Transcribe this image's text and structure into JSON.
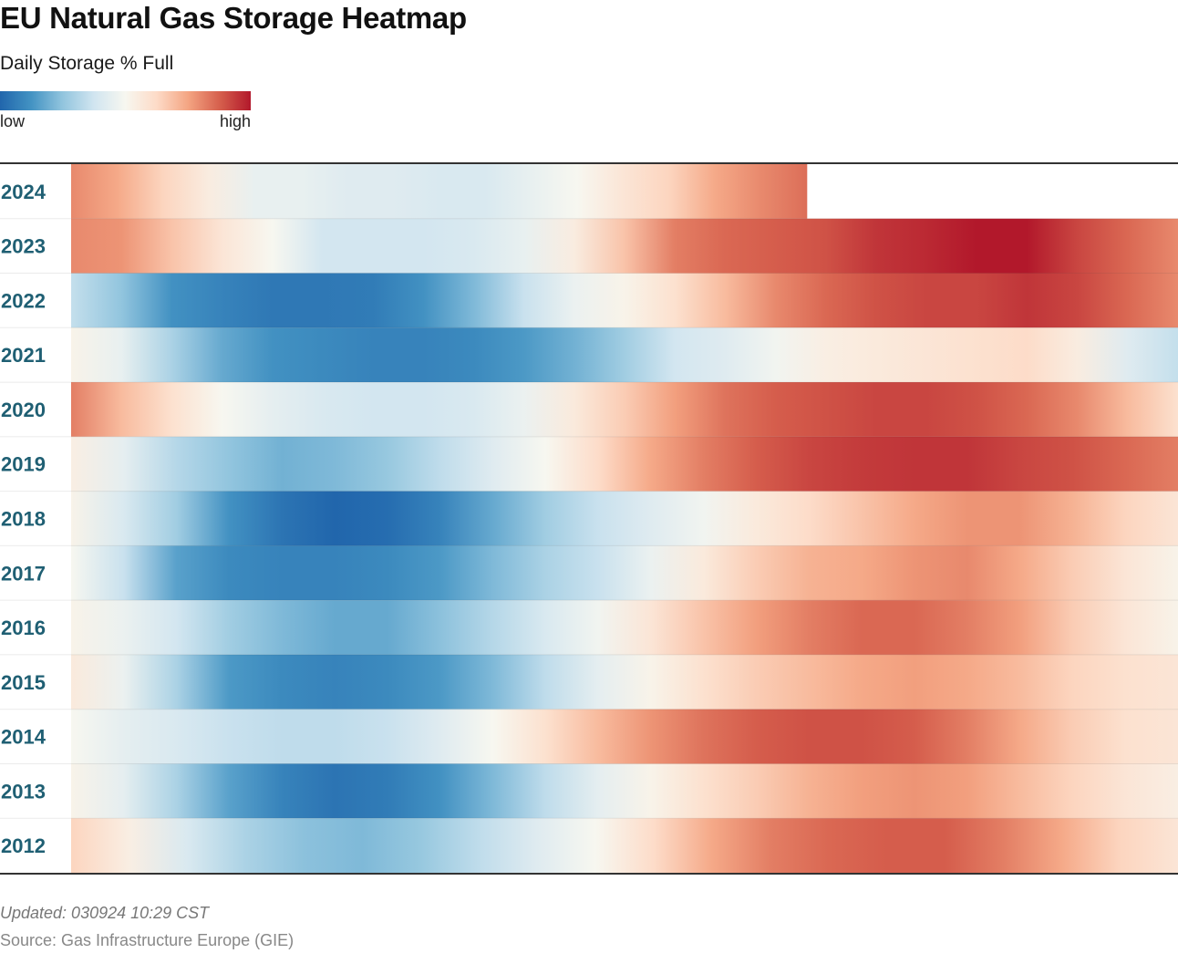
{
  "header": {
    "title": "EU Natural Gas Storage Heatmap",
    "subtitle": "Daily Storage % Full"
  },
  "legend": {
    "low_label": "low",
    "high_label": "high",
    "colors": [
      "#2166ac",
      "#4393c3",
      "#92c5de",
      "#d1e5f0",
      "#f7f7f0",
      "#fddbc7",
      "#f4a582",
      "#d6604d",
      "#b2182b"
    ]
  },
  "footer": {
    "updated": "Updated: 030924 10:29 CST",
    "source": "Source: Gas Infrastructure Europe (GIE)"
  },
  "chart_data": {
    "type": "heatmap",
    "title": "EU Natural Gas Storage Heatmap",
    "subtitle": "Daily Storage % Full",
    "value_scale": "relative intensity 0 (low) to 1 (high)",
    "colorscale": "blue-white-red diverging",
    "x_span_months": 12,
    "rows": [
      {
        "year": "2024",
        "values": [
          0.8,
          0.74,
          0.64,
          0.55,
          0.45,
          0.45,
          0.42,
          0.42,
          0.4,
          0.4,
          0.45,
          0.5,
          0.58,
          0.64,
          0.74,
          0.8,
          0.85
        ],
        "coverage": 0.665
      },
      {
        "year": "2023",
        "values": [
          0.8,
          0.78,
          0.68,
          0.58,
          0.5,
          0.38,
          0.38,
          0.38,
          0.4,
          0.45,
          0.55,
          0.68,
          0.82,
          0.86,
          0.88,
          0.9,
          0.95,
          0.97,
          1.0,
          1.0,
          0.92,
          0.86,
          0.8
        ],
        "coverage": 1.0
      },
      {
        "year": "2022",
        "values": [
          0.35,
          0.25,
          0.12,
          0.08,
          0.05,
          0.05,
          0.06,
          0.12,
          0.22,
          0.36,
          0.46,
          0.52,
          0.6,
          0.7,
          0.8,
          0.86,
          0.9,
          0.92,
          0.92,
          0.95,
          0.92,
          0.86,
          0.8
        ],
        "coverage": 1.0
      },
      {
        "year": "2021",
        "values": [
          0.52,
          0.45,
          0.3,
          0.18,
          0.12,
          0.1,
          0.08,
          0.08,
          0.1,
          0.14,
          0.2,
          0.28,
          0.38,
          0.42,
          0.48,
          0.54,
          0.56,
          0.58,
          0.6,
          0.62,
          0.55,
          0.42,
          0.35
        ],
        "coverage": 1.0
      },
      {
        "year": "2020",
        "values": [
          0.82,
          0.7,
          0.6,
          0.5,
          0.44,
          0.4,
          0.38,
          0.38,
          0.4,
          0.46,
          0.56,
          0.66,
          0.76,
          0.84,
          0.88,
          0.9,
          0.92,
          0.92,
          0.9,
          0.86,
          0.8,
          0.7,
          0.6
        ],
        "coverage": 1.0
      },
      {
        "year": "2019",
        "values": [
          0.54,
          0.44,
          0.32,
          0.25,
          0.2,
          0.22,
          0.26,
          0.34,
          0.42,
          0.5,
          0.62,
          0.74,
          0.82,
          0.88,
          0.92,
          0.94,
          0.95,
          0.95,
          0.92,
          0.9,
          0.86,
          0.82
        ],
        "coverage": 1.0
      },
      {
        "year": "2018",
        "values": [
          0.52,
          0.4,
          0.28,
          0.12,
          0.04,
          0.0,
          0.02,
          0.08,
          0.18,
          0.28,
          0.36,
          0.42,
          0.48,
          0.56,
          0.62,
          0.68,
          0.74,
          0.78,
          0.78,
          0.72,
          0.64,
          0.58
        ],
        "coverage": 1.0
      },
      {
        "year": "2017",
        "values": [
          0.5,
          0.36,
          0.16,
          0.1,
          0.08,
          0.08,
          0.1,
          0.14,
          0.22,
          0.3,
          0.36,
          0.46,
          0.56,
          0.66,
          0.72,
          0.74,
          0.78,
          0.8,
          0.74,
          0.66,
          0.58,
          0.52
        ],
        "coverage": 1.0
      },
      {
        "year": "2016",
        "values": [
          0.52,
          0.46,
          0.38,
          0.28,
          0.22,
          0.18,
          0.18,
          0.24,
          0.32,
          0.4,
          0.48,
          0.58,
          0.68,
          0.76,
          0.82,
          0.86,
          0.86,
          0.82,
          0.76,
          0.66,
          0.58,
          0.52
        ],
        "coverage": 1.0
      },
      {
        "year": "2015",
        "values": [
          0.56,
          0.46,
          0.3,
          0.14,
          0.1,
          0.08,
          0.1,
          0.14,
          0.22,
          0.34,
          0.44,
          0.52,
          0.6,
          0.66,
          0.7,
          0.74,
          0.76,
          0.74,
          0.7,
          0.64,
          0.6,
          0.58
        ],
        "coverage": 1.0
      },
      {
        "year": "2014",
        "values": [
          0.5,
          0.44,
          0.4,
          0.36,
          0.34,
          0.34,
          0.36,
          0.42,
          0.5,
          0.6,
          0.7,
          0.78,
          0.84,
          0.88,
          0.9,
          0.9,
          0.88,
          0.82,
          0.74,
          0.66,
          0.6,
          0.58
        ],
        "coverage": 1.0
      },
      {
        "year": "2013",
        "values": [
          0.52,
          0.44,
          0.3,
          0.16,
          0.08,
          0.04,
          0.06,
          0.12,
          0.22,
          0.34,
          0.44,
          0.52,
          0.6,
          0.66,
          0.72,
          0.76,
          0.78,
          0.76,
          0.7,
          0.64,
          0.58,
          0.54
        ],
        "coverage": 1.0
      },
      {
        "year": "2012",
        "values": [
          0.64,
          0.54,
          0.4,
          0.3,
          0.24,
          0.22,
          0.26,
          0.34,
          0.42,
          0.5,
          0.62,
          0.74,
          0.82,
          0.86,
          0.88,
          0.88,
          0.82,
          0.74,
          0.64,
          0.58
        ],
        "coverage": 1.0
      }
    ]
  }
}
